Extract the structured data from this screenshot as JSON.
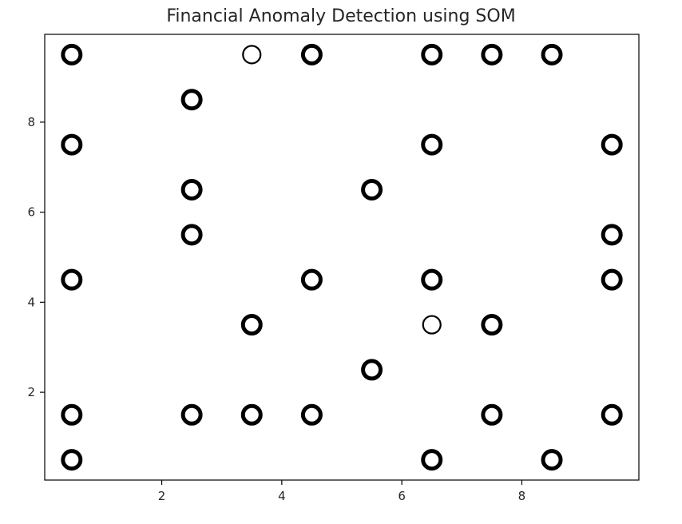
{
  "chart_data": {
    "type": "scatter",
    "title": "Financial Anomaly Detection using SOM",
    "xlabel": "",
    "ylabel": "",
    "xlim": [
      0.05,
      9.95
    ],
    "ylim": [
      0.05,
      9.95
    ],
    "x_ticks": [
      2,
      4,
      6,
      8
    ],
    "y_ticks": [
      2,
      4,
      6,
      8
    ],
    "grid": false,
    "marker": "hollow circle",
    "colors": {
      "marker_edge": "#000000",
      "marker_face": "#ffffff",
      "axes": "#000000",
      "text": "#262626"
    },
    "series": [
      {
        "points": [
          {
            "x": 0.5,
            "y": 9.5,
            "edge": "thick"
          },
          {
            "x": 3.5,
            "y": 9.5,
            "edge": "thin"
          },
          {
            "x": 4.5,
            "y": 9.5,
            "edge": "thick"
          },
          {
            "x": 6.5,
            "y": 9.5,
            "edge": "thick"
          },
          {
            "x": 7.5,
            "y": 9.5,
            "edge": "thick"
          },
          {
            "x": 8.5,
            "y": 9.5,
            "edge": "thick"
          },
          {
            "x": 2.5,
            "y": 8.5,
            "edge": "thick"
          },
          {
            "x": 0.5,
            "y": 7.5,
            "edge": "thick"
          },
          {
            "x": 6.5,
            "y": 7.5,
            "edge": "thick"
          },
          {
            "x": 9.5,
            "y": 7.5,
            "edge": "thick"
          },
          {
            "x": 2.5,
            "y": 6.5,
            "edge": "thick"
          },
          {
            "x": 5.5,
            "y": 6.5,
            "edge": "thick"
          },
          {
            "x": 2.5,
            "y": 5.5,
            "edge": "thick"
          },
          {
            "x": 9.5,
            "y": 5.5,
            "edge": "thick"
          },
          {
            "x": 0.5,
            "y": 4.5,
            "edge": "thick"
          },
          {
            "x": 4.5,
            "y": 4.5,
            "edge": "thick"
          },
          {
            "x": 6.5,
            "y": 4.5,
            "edge": "thick"
          },
          {
            "x": 9.5,
            "y": 4.5,
            "edge": "thick"
          },
          {
            "x": 3.5,
            "y": 3.5,
            "edge": "thick"
          },
          {
            "x": 6.5,
            "y": 3.5,
            "edge": "thin"
          },
          {
            "x": 7.5,
            "y": 3.5,
            "edge": "thick"
          },
          {
            "x": 5.5,
            "y": 2.5,
            "edge": "thick"
          },
          {
            "x": 0.5,
            "y": 1.5,
            "edge": "thick"
          },
          {
            "x": 2.5,
            "y": 1.5,
            "edge": "thick"
          },
          {
            "x": 3.5,
            "y": 1.5,
            "edge": "thick"
          },
          {
            "x": 4.5,
            "y": 1.5,
            "edge": "thick"
          },
          {
            "x": 7.5,
            "y": 1.5,
            "edge": "thick"
          },
          {
            "x": 9.5,
            "y": 1.5,
            "edge": "thick"
          },
          {
            "x": 0.5,
            "y": 0.5,
            "edge": "thick"
          },
          {
            "x": 6.5,
            "y": 0.5,
            "edge": "thick"
          },
          {
            "x": 8.5,
            "y": 0.5,
            "edge": "thick"
          }
        ]
      }
    ]
  }
}
